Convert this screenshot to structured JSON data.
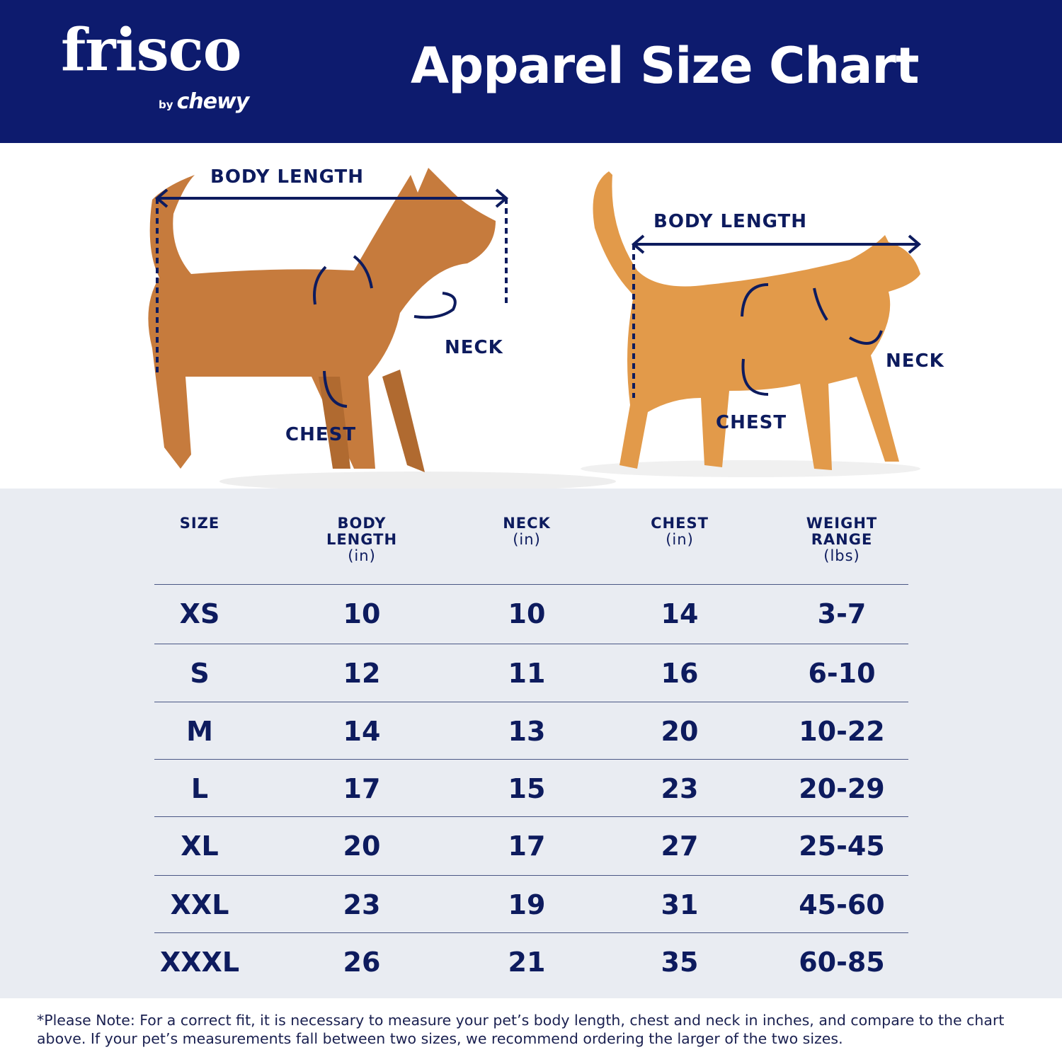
{
  "brand": {
    "logo_main": "frisco",
    "logo_by": "by",
    "logo_chewy": "chewy"
  },
  "header": {
    "title": "Apparel Size Chart"
  },
  "colors": {
    "navy": "#0d1b6e",
    "table_bg": "#e9ecf2",
    "text": "#0d1b5e"
  },
  "illustration": {
    "dog": {
      "body_length": "BODY LENGTH",
      "neck": "NECK",
      "chest": "CHEST"
    },
    "cat": {
      "body_length": "BODY LENGTH",
      "neck": "NECK",
      "chest": "CHEST"
    }
  },
  "table": {
    "headers": [
      {
        "label": "SIZE",
        "unit": ""
      },
      {
        "label": "BODY LENGTH",
        "unit": "(in)"
      },
      {
        "label": "NECK",
        "unit": "(in)"
      },
      {
        "label": "CHEST",
        "unit": "(in)"
      },
      {
        "label": "WEIGHT RANGE",
        "unit": "(lbs)"
      }
    ],
    "rows": [
      [
        "XS",
        "10",
        "10",
        "14",
        "3-7"
      ],
      [
        "S",
        "12",
        "11",
        "16",
        "6-10"
      ],
      [
        "M",
        "14",
        "13",
        "20",
        "10-22"
      ],
      [
        "L",
        "17",
        "15",
        "23",
        "20-29"
      ],
      [
        "XL",
        "20",
        "17",
        "27",
        "25-45"
      ],
      [
        "XXL",
        "23",
        "19",
        "31",
        "45-60"
      ],
      [
        "XXXL",
        "26",
        "21",
        "35",
        "60-85"
      ]
    ]
  },
  "footer": {
    "note": "*Please Note: For a correct fit, it is necessary to measure your pet’s body length, chest and neck in inches, and compare to the chart above. If your pet’s measurements fall between two sizes, we recommend ordering the larger of the two sizes."
  }
}
